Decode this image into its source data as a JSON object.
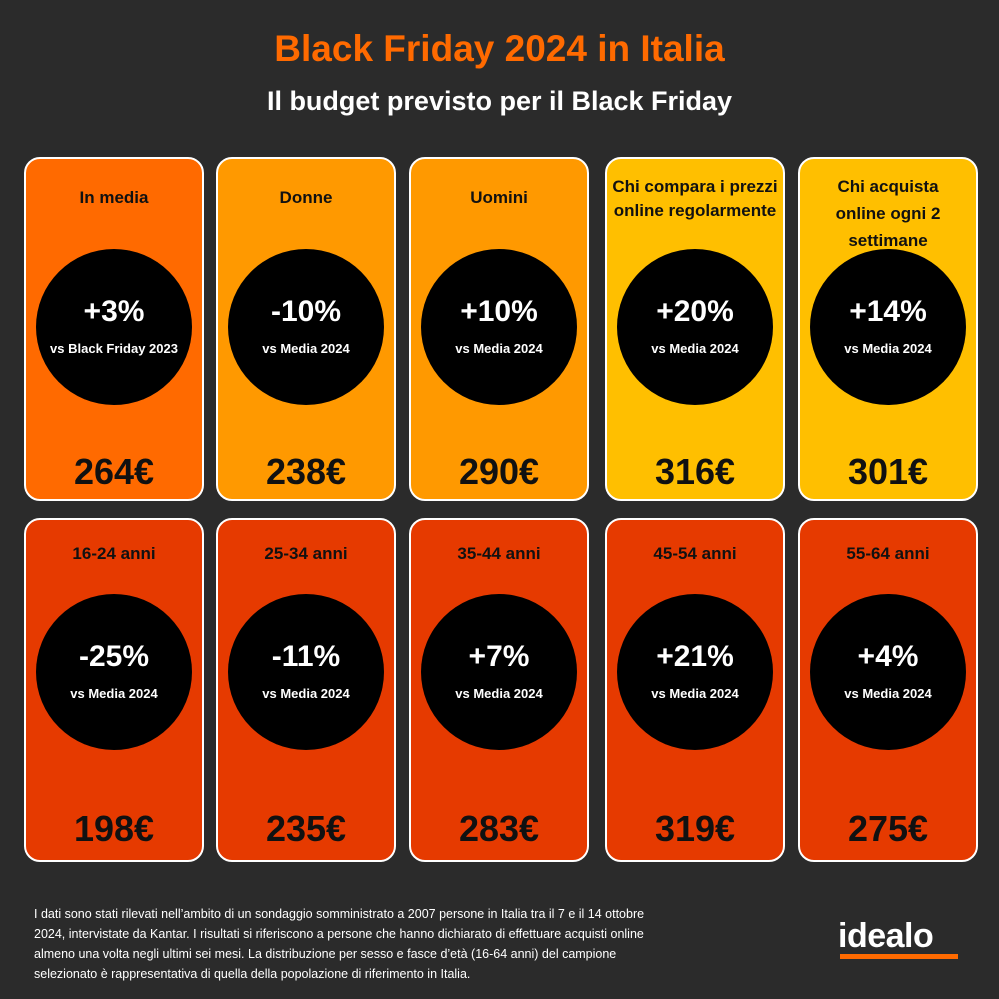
{
  "header": {
    "title": "Black Friday 2024 in Italia",
    "subtitle": "Il budget previsto per il Black Friday"
  },
  "colors": {
    "title_accent": "#ff6a00",
    "background": "#2b2b2b",
    "card_orange": "#ff6a00",
    "card_amber": "#ff9900",
    "card_yellow": "#ffbf00",
    "card_red": "#e63a00"
  },
  "cards": [
    {
      "label": "In media",
      "change": "+3%",
      "comparison": "vs Black Friday 2023",
      "amount": "264€",
      "color": "#ff6a00"
    },
    {
      "label": "Donne",
      "change": "-10%",
      "comparison": "vs Media 2024",
      "amount": "238€",
      "color": "#ff9900"
    },
    {
      "label": "Uomini",
      "change": "+10%",
      "comparison": "vs Media 2024",
      "amount": "290€",
      "color": "#ff9900"
    },
    {
      "label": "Chi compara i prezzi online regolarmente",
      "change": "+20%",
      "comparison": "vs Media 2024",
      "amount": "316€",
      "color": "#ffbf00"
    },
    {
      "label": "Chi acquista online ogni 2 settimane",
      "change": "+14%",
      "comparison": "vs Media 2024",
      "amount": "301€",
      "color": "#ffbf00"
    },
    {
      "label": "16-24 anni",
      "change": "-25%",
      "comparison": "vs Media 2024",
      "amount": "198€",
      "color": "#e63a00"
    },
    {
      "label": "25-34 anni",
      "change": "-11%",
      "comparison": "vs Media 2024",
      "amount": "235€",
      "color": "#e63a00"
    },
    {
      "label": "35-44 anni",
      "change": "+7%",
      "comparison": "vs Media 2024",
      "amount": "283€",
      "color": "#e63a00"
    },
    {
      "label": "45-54 anni",
      "change": "+21%",
      "comparison": "vs Media 2024",
      "amount": "319€",
      "color": "#e63a00"
    },
    {
      "label": "55-64 anni",
      "change": "+4%",
      "comparison": "vs Media 2024",
      "amount": "275€",
      "color": "#e63a00"
    }
  ],
  "footnote": "I dati sono stati rilevati nell’ambito di un sondaggio somministrato a 2007 persone in Italia tra il 7 e il 14 ottobre 2024, intervistate da Kantar. I risultati si riferiscono a persone che hanno dichiarato di effettuare acquisti online almeno una volta negli ultimi sei mesi. La distribuzione per sesso e fasce d’età (16-64 anni) del campione selezionato è rappresentativa di quella della popolazione di riferimento in Italia.",
  "logo": {
    "text": "idealo"
  }
}
